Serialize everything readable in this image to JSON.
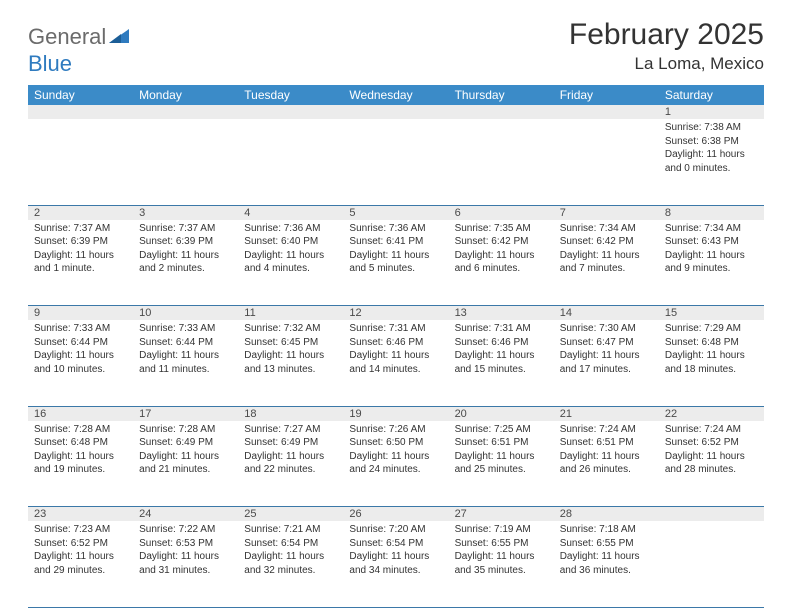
{
  "brand": {
    "name_a": "General",
    "name_b": "Blue"
  },
  "title": "February 2025",
  "location": "La Loma, Mexico",
  "colors": {
    "header_bg": "#3b8bc8",
    "header_text": "#ffffff",
    "daynum_bg": "#ececec",
    "border": "#3b78a8",
    "body_text": "#333333",
    "brand_gray": "#6b6b6b",
    "brand_blue": "#2f7bbf"
  },
  "day_headers": [
    "Sunday",
    "Monday",
    "Tuesday",
    "Wednesday",
    "Thursday",
    "Friday",
    "Saturday"
  ],
  "weeks": [
    {
      "nums": [
        "",
        "",
        "",
        "",
        "",
        "",
        "1"
      ],
      "cells": [
        null,
        null,
        null,
        null,
        null,
        null,
        {
          "sunrise": "Sunrise: 7:38 AM",
          "sunset": "Sunset: 6:38 PM",
          "daylight": "Daylight: 11 hours and 0 minutes."
        }
      ]
    },
    {
      "nums": [
        "2",
        "3",
        "4",
        "5",
        "6",
        "7",
        "8"
      ],
      "cells": [
        {
          "sunrise": "Sunrise: 7:37 AM",
          "sunset": "Sunset: 6:39 PM",
          "daylight": "Daylight: 11 hours and 1 minute."
        },
        {
          "sunrise": "Sunrise: 7:37 AM",
          "sunset": "Sunset: 6:39 PM",
          "daylight": "Daylight: 11 hours and 2 minutes."
        },
        {
          "sunrise": "Sunrise: 7:36 AM",
          "sunset": "Sunset: 6:40 PM",
          "daylight": "Daylight: 11 hours and 4 minutes."
        },
        {
          "sunrise": "Sunrise: 7:36 AM",
          "sunset": "Sunset: 6:41 PM",
          "daylight": "Daylight: 11 hours and 5 minutes."
        },
        {
          "sunrise": "Sunrise: 7:35 AM",
          "sunset": "Sunset: 6:42 PM",
          "daylight": "Daylight: 11 hours and 6 minutes."
        },
        {
          "sunrise": "Sunrise: 7:34 AM",
          "sunset": "Sunset: 6:42 PM",
          "daylight": "Daylight: 11 hours and 7 minutes."
        },
        {
          "sunrise": "Sunrise: 7:34 AM",
          "sunset": "Sunset: 6:43 PM",
          "daylight": "Daylight: 11 hours and 9 minutes."
        }
      ]
    },
    {
      "nums": [
        "9",
        "10",
        "11",
        "12",
        "13",
        "14",
        "15"
      ],
      "cells": [
        {
          "sunrise": "Sunrise: 7:33 AM",
          "sunset": "Sunset: 6:44 PM",
          "daylight": "Daylight: 11 hours and 10 minutes."
        },
        {
          "sunrise": "Sunrise: 7:33 AM",
          "sunset": "Sunset: 6:44 PM",
          "daylight": "Daylight: 11 hours and 11 minutes."
        },
        {
          "sunrise": "Sunrise: 7:32 AM",
          "sunset": "Sunset: 6:45 PM",
          "daylight": "Daylight: 11 hours and 13 minutes."
        },
        {
          "sunrise": "Sunrise: 7:31 AM",
          "sunset": "Sunset: 6:46 PM",
          "daylight": "Daylight: 11 hours and 14 minutes."
        },
        {
          "sunrise": "Sunrise: 7:31 AM",
          "sunset": "Sunset: 6:46 PM",
          "daylight": "Daylight: 11 hours and 15 minutes."
        },
        {
          "sunrise": "Sunrise: 7:30 AM",
          "sunset": "Sunset: 6:47 PM",
          "daylight": "Daylight: 11 hours and 17 minutes."
        },
        {
          "sunrise": "Sunrise: 7:29 AM",
          "sunset": "Sunset: 6:48 PM",
          "daylight": "Daylight: 11 hours and 18 minutes."
        }
      ]
    },
    {
      "nums": [
        "16",
        "17",
        "18",
        "19",
        "20",
        "21",
        "22"
      ],
      "cells": [
        {
          "sunrise": "Sunrise: 7:28 AM",
          "sunset": "Sunset: 6:48 PM",
          "daylight": "Daylight: 11 hours and 19 minutes."
        },
        {
          "sunrise": "Sunrise: 7:28 AM",
          "sunset": "Sunset: 6:49 PM",
          "daylight": "Daylight: 11 hours and 21 minutes."
        },
        {
          "sunrise": "Sunrise: 7:27 AM",
          "sunset": "Sunset: 6:49 PM",
          "daylight": "Daylight: 11 hours and 22 minutes."
        },
        {
          "sunrise": "Sunrise: 7:26 AM",
          "sunset": "Sunset: 6:50 PM",
          "daylight": "Daylight: 11 hours and 24 minutes."
        },
        {
          "sunrise": "Sunrise: 7:25 AM",
          "sunset": "Sunset: 6:51 PM",
          "daylight": "Daylight: 11 hours and 25 minutes."
        },
        {
          "sunrise": "Sunrise: 7:24 AM",
          "sunset": "Sunset: 6:51 PM",
          "daylight": "Daylight: 11 hours and 26 minutes."
        },
        {
          "sunrise": "Sunrise: 7:24 AM",
          "sunset": "Sunset: 6:52 PM",
          "daylight": "Daylight: 11 hours and 28 minutes."
        }
      ]
    },
    {
      "nums": [
        "23",
        "24",
        "25",
        "26",
        "27",
        "28",
        ""
      ],
      "cells": [
        {
          "sunrise": "Sunrise: 7:23 AM",
          "sunset": "Sunset: 6:52 PM",
          "daylight": "Daylight: 11 hours and 29 minutes."
        },
        {
          "sunrise": "Sunrise: 7:22 AM",
          "sunset": "Sunset: 6:53 PM",
          "daylight": "Daylight: 11 hours and 31 minutes."
        },
        {
          "sunrise": "Sunrise: 7:21 AM",
          "sunset": "Sunset: 6:54 PM",
          "daylight": "Daylight: 11 hours and 32 minutes."
        },
        {
          "sunrise": "Sunrise: 7:20 AM",
          "sunset": "Sunset: 6:54 PM",
          "daylight": "Daylight: 11 hours and 34 minutes."
        },
        {
          "sunrise": "Sunrise: 7:19 AM",
          "sunset": "Sunset: 6:55 PM",
          "daylight": "Daylight: 11 hours and 35 minutes."
        },
        {
          "sunrise": "Sunrise: 7:18 AM",
          "sunset": "Sunset: 6:55 PM",
          "daylight": "Daylight: 11 hours and 36 minutes."
        },
        null
      ]
    }
  ]
}
